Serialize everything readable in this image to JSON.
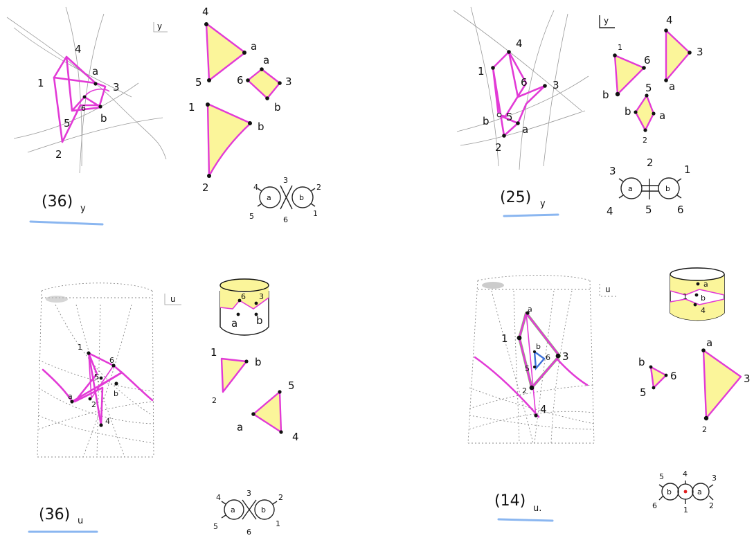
{
  "panels": [
    {
      "id": "top-left",
      "caption": "(36)",
      "subscript": "y",
      "tag": "y",
      "projection_labels": [
        "4",
        "1",
        "a",
        "3",
        "6",
        "5",
        "b",
        "2"
      ],
      "piece_labels": [
        "4",
        "a",
        "5",
        "6",
        "a",
        "3",
        "b",
        "1",
        "b",
        "2"
      ],
      "graph_labels": [
        "4",
        "3",
        "2",
        "5",
        "6",
        "1",
        "a",
        "b"
      ]
    },
    {
      "id": "top-right",
      "caption": "(25)",
      "subscript": "y",
      "tag": "y",
      "projection_labels": [
        "4",
        "1",
        "6",
        "3",
        "b",
        "5",
        "a",
        "2"
      ],
      "piece_labels": [
        "1",
        "6",
        "b",
        "4",
        "3",
        "a",
        "5",
        "b",
        "a",
        "2"
      ],
      "graph_labels": [
        "3",
        "2",
        "1",
        "4",
        "5",
        "6",
        "a",
        "b"
      ]
    },
    {
      "id": "bottom-left",
      "caption": "(36)",
      "subscript": "u",
      "tag": "u",
      "projection_labels": [
        "1",
        "6",
        "5",
        "a",
        "2",
        "b",
        "4"
      ],
      "cylinder_labels": [
        "6",
        "3",
        "a",
        "b"
      ],
      "piece_labels": [
        "1",
        "b",
        "2",
        "5",
        "a",
        "4"
      ],
      "graph_labels": [
        "4",
        "3",
        "2",
        "5",
        "6",
        "1",
        "a",
        "b"
      ]
    },
    {
      "id": "bottom-right",
      "caption": "(14)",
      "subscript": "u.",
      "tag": "u",
      "projection_labels": [
        "a",
        "1",
        "b",
        "5",
        "6",
        "3",
        "2",
        "4"
      ],
      "cylinder_labels": [
        "a",
        "1",
        "b",
        "4"
      ],
      "piece_labels": [
        "b",
        "6",
        "5",
        "a",
        "3",
        "2"
      ],
      "graph_labels": [
        "5",
        "4",
        "3",
        "6",
        "1",
        "2",
        "b",
        "a"
      ]
    }
  ],
  "colors": {
    "ink": "#111111",
    "pink": "#e23ad6",
    "yellow": "#fbf59a",
    "underline": "#8ab6f0",
    "green": "#6ab04c",
    "blue": "#3b6fd8",
    "red": "#e02020"
  }
}
